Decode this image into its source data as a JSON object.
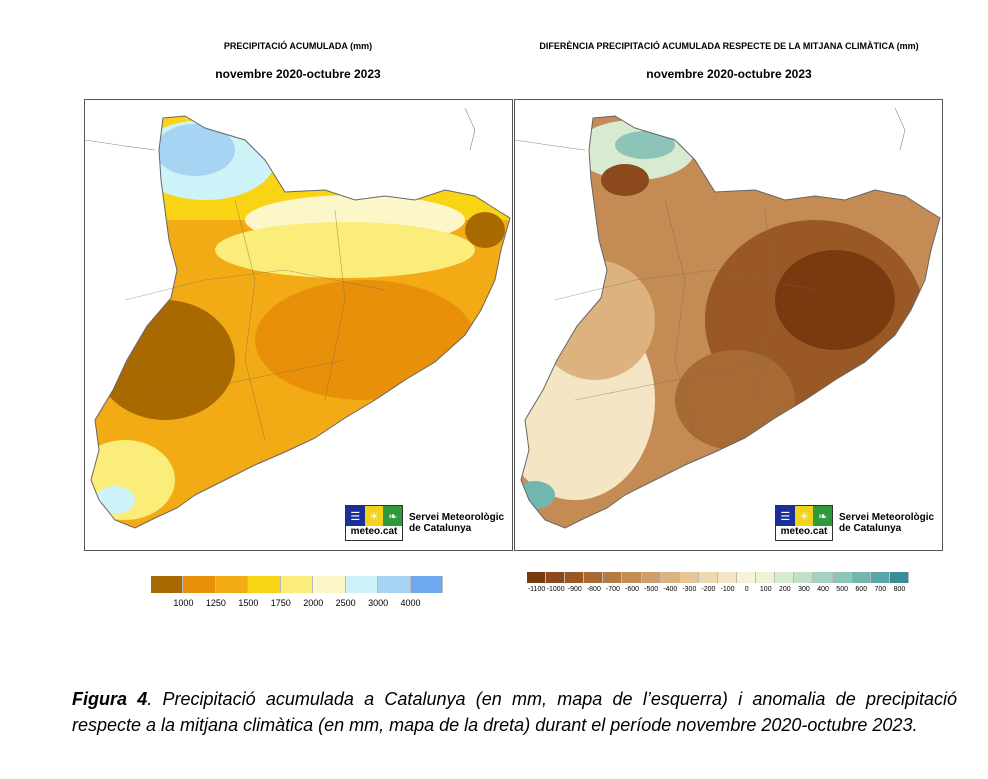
{
  "left_map": {
    "title": "PRECIPITACIÓ ACUMULADA (mm)",
    "subtitle": "novembre 2020-octubre 2023",
    "legend_colors": [
      "#a86a00",
      "#e8900a",
      "#f2ab14",
      "#f8d414",
      "#faed7a",
      "#fcf7c8",
      "#cdf3f8",
      "#a8d4f4",
      "#6ea8ee"
    ],
    "legend_labels": [
      "1000",
      "1250",
      "1500",
      "1750",
      "2000",
      "2500",
      "3000",
      "4000"
    ]
  },
  "right_map": {
    "title": "DIFERÈNCIA PRECIPITACIÓ ACUMULADA RESPECTE DE LA MITJANA CLIMÀTICA (mm)",
    "subtitle": "novembre 2020-octubre 2023",
    "legend_colors": [
      "#7a3a10",
      "#8c4a1c",
      "#9a5826",
      "#a86a34",
      "#b67a44",
      "#c48c54",
      "#d09e68",
      "#dcb27e",
      "#e6c696",
      "#eed8ae",
      "#f4e6c4",
      "#f8f2d8",
      "#eef2d0",
      "#d8ead0",
      "#c0e0c8",
      "#a6d2c0",
      "#8cc4b8",
      "#72b6b0",
      "#58a6a8",
      "#3a8c96"
    ],
    "legend_labels": [
      "-1100",
      "-1000",
      "-900",
      "-800",
      "-700",
      "-600",
      "-500",
      "-400",
      "-300",
      "-200",
      "-100",
      "0",
      "100",
      "200",
      "300",
      "400",
      "500",
      "600",
      "700",
      "800"
    ]
  },
  "logo": {
    "text": "meteo.cat",
    "org_line1": "Servei Meteorològic",
    "org_line2": "de Catalunya"
  },
  "caption": {
    "label": "Figura 4",
    "text": ". Precipitació acumulada a Catalunya (en mm, mapa de l’esquerra) i anomalia de precipitació respecte a la mitjana climàtica (en mm, mapa de la dreta) durant el període novembre 2020-octubre 2023."
  }
}
